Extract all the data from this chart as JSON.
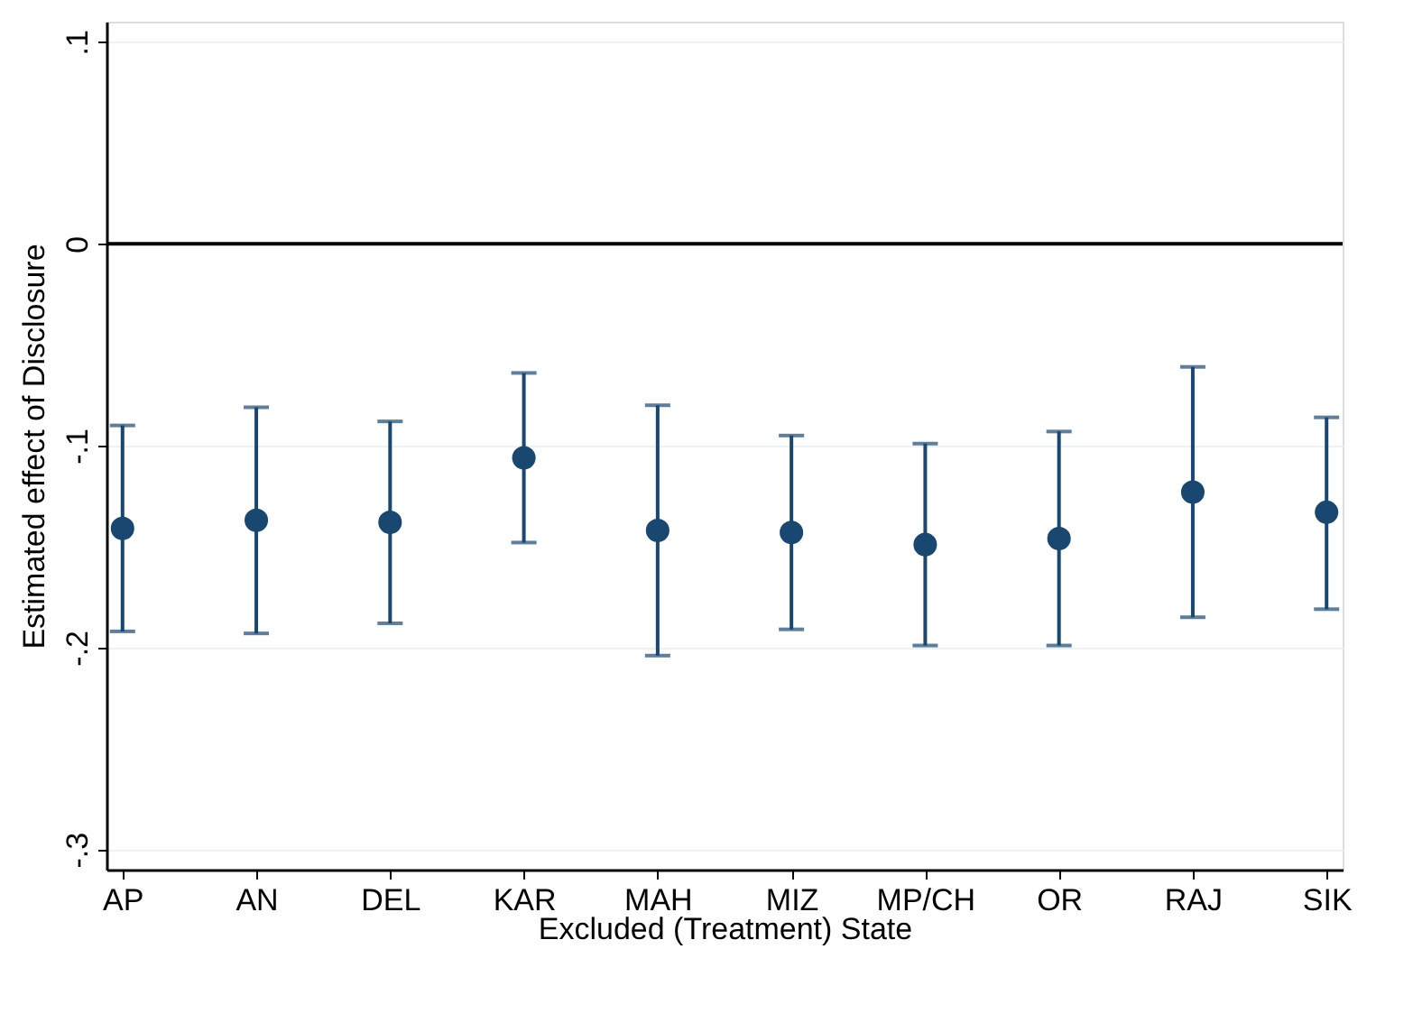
{
  "chart_data": {
    "type": "scatter",
    "xlabel": "Excluded (Treatment) State",
    "ylabel": "Estimated effect of Disclosure",
    "categories": [
      "AP",
      "AN",
      "DEL",
      "KAR",
      "MAH",
      "MIZ",
      "MP/CH",
      "OR",
      "RAJ",
      "SIK"
    ],
    "series": [
      {
        "color": "#1a476f",
        "values": [
          -0.141,
          -0.137,
          -0.138,
          -0.106,
          -0.142,
          -0.143,
          -0.149,
          -0.146,
          -0.123,
          -0.133
        ],
        "errors": [
          [
            -0.192,
            -0.09
          ],
          [
            -0.193,
            -0.081
          ],
          [
            -0.188,
            -0.088
          ],
          [
            -0.148,
            -0.064
          ],
          [
            -0.204,
            -0.08
          ],
          [
            -0.191,
            -0.095
          ],
          [
            -0.199,
            -0.099
          ],
          [
            -0.199,
            -0.093
          ],
          [
            -0.185,
            -0.061
          ],
          [
            -0.181,
            -0.086
          ]
        ]
      }
    ],
    "ylim": [
      -0.31,
      0.11
    ],
    "yticks": [
      {
        "value": -0.3,
        "label": "-.3"
      },
      {
        "value": -0.2,
        "label": "-.2"
      },
      {
        "value": -0.1,
        "label": "-.1"
      },
      0,
      {
        "value": 0.1,
        "label": ".1"
      }
    ],
    "ref_lines": [
      {
        "axis": "y",
        "value": 0,
        "color": "#000000"
      }
    ],
    "grid": "y",
    "marker": "circle"
  }
}
